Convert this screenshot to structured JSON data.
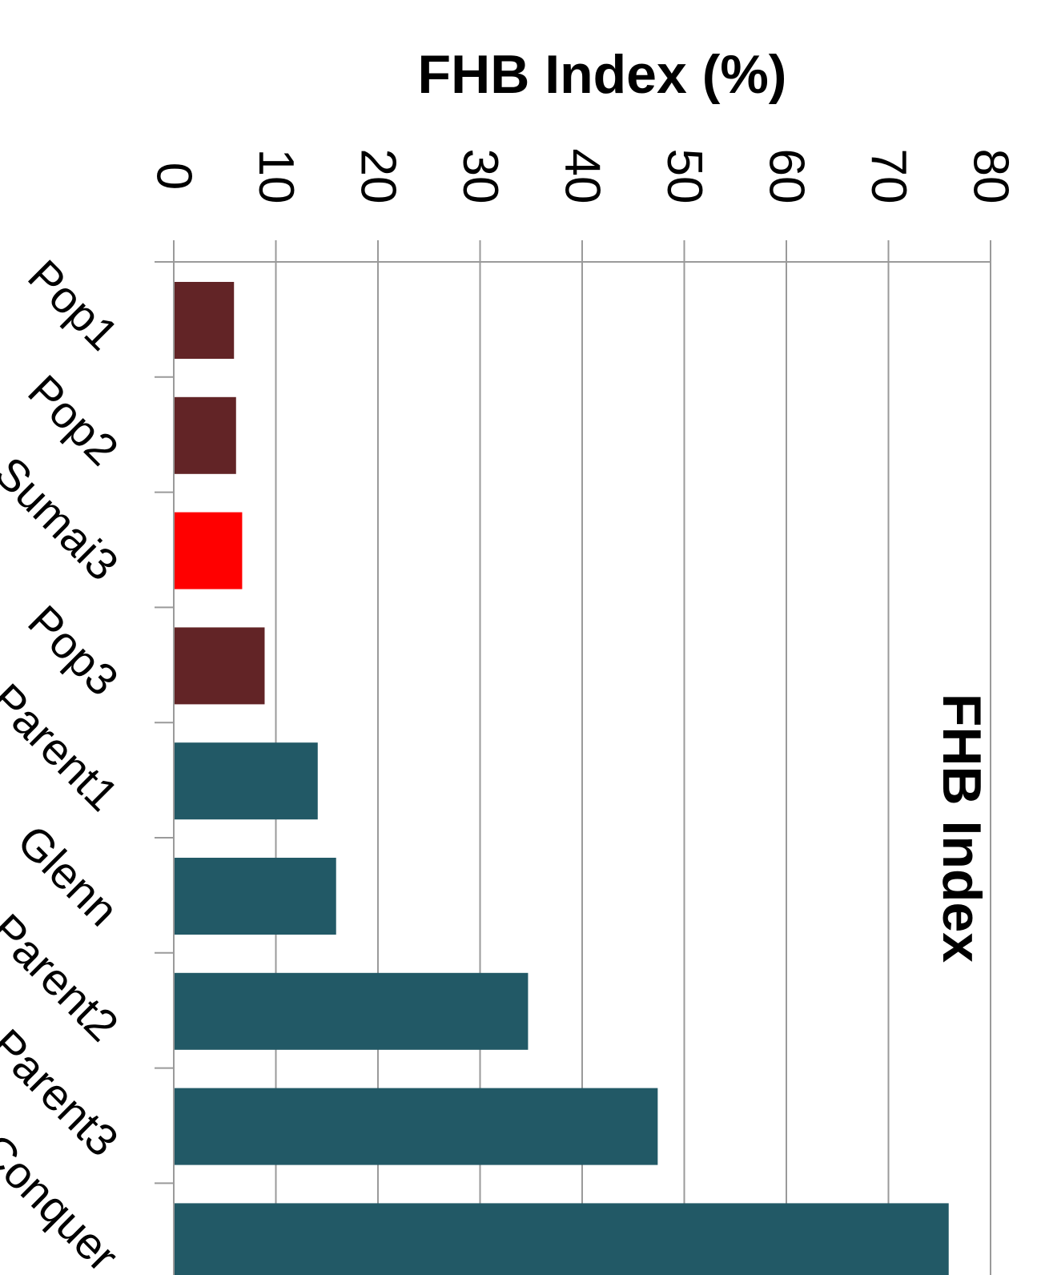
{
  "chart_data": {
    "type": "bar",
    "orientation": "horizontal",
    "title": "FHB Index (%)",
    "subtitle": "FHB Index",
    "xlabel": "",
    "ylabel": "",
    "xlim": [
      0,
      80
    ],
    "ticks": [
      0,
      10,
      20,
      30,
      40,
      50,
      60,
      70,
      80
    ],
    "tick_labels": [
      "0",
      "10",
      "20",
      "30",
      "40",
      "50",
      "60",
      "70",
      "80"
    ],
    "categories": [
      "Pop1",
      "Pop2",
      "Sumai3",
      "Pop3",
      "Parent1",
      "Glenn",
      "Parent2",
      "Parent3",
      "Conquer"
    ],
    "values": [
      5.9,
      6.1,
      6.7,
      8.9,
      14.1,
      15.9,
      34.7,
      47.4,
      75.9
    ],
    "bar_colors": [
      "#622426",
      "#622426",
      "#ff0000",
      "#622426",
      "#225966",
      "#225966",
      "#225966",
      "#225966",
      "#225966"
    ],
    "grid": true,
    "gridline_color": "#9a9a9a",
    "legend": "none"
  }
}
